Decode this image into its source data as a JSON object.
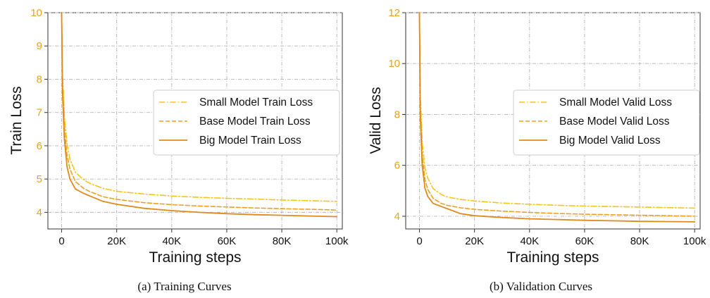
{
  "chart_data": [
    {
      "type": "line",
      "caption": "(a) Training Curves",
      "xlabel": "Training steps",
      "ylabel": "Train Loss",
      "xlim": [
        -5000,
        102000
      ],
      "ylim": [
        3.5,
        10
      ],
      "xticks": [
        0,
        20000,
        40000,
        60000,
        80000,
        100000
      ],
      "xtick_labels": [
        "0",
        "20K",
        "40K",
        "60K",
        "80K",
        "100k"
      ],
      "yticks": [
        4,
        5,
        6,
        7,
        8,
        9,
        10
      ],
      "ytick_labels": [
        "4",
        "5",
        "6",
        "7",
        "8",
        "9",
        "10"
      ],
      "grid": true,
      "legend_position": "center-right",
      "series": [
        {
          "name": "Small Model Train Loss",
          "style": "dashdot",
          "color": "#f5c518",
          "x": [
            0,
            300,
            1000,
            2000,
            3000,
            5000,
            8000,
            10000,
            15000,
            20000,
            30000,
            40000,
            50000,
            60000,
            70000,
            80000,
            90000,
            100000
          ],
          "y": [
            10,
            8.2,
            6.9,
            6.05,
            5.6,
            5.2,
            4.98,
            4.88,
            4.72,
            4.63,
            4.55,
            4.49,
            4.45,
            4.42,
            4.4,
            4.37,
            4.35,
            4.33
          ]
        },
        {
          "name": "Base Model Train Loss",
          "style": "dashed",
          "color": "#f0a020",
          "x": [
            0,
            300,
            1000,
            2000,
            3000,
            5000,
            8000,
            10000,
            15000,
            20000,
            30000,
            40000,
            50000,
            60000,
            70000,
            80000,
            90000,
            100000
          ],
          "y": [
            10,
            7.9,
            6.5,
            5.7,
            5.3,
            4.92,
            4.72,
            4.63,
            4.47,
            4.39,
            4.29,
            4.23,
            4.19,
            4.16,
            4.13,
            4.11,
            4.09,
            4.07
          ]
        },
        {
          "name": "Big Model Train Loss",
          "style": "solid",
          "color": "#e08a1e",
          "x": [
            0,
            300,
            1000,
            2000,
            3000,
            5000,
            8000,
            10000,
            15000,
            20000,
            30000,
            40000,
            50000,
            60000,
            70000,
            80000,
            90000,
            100000
          ],
          "y": [
            10,
            7.6,
            6.2,
            5.35,
            5.0,
            4.7,
            4.57,
            4.5,
            4.33,
            4.24,
            4.12,
            4.05,
            4.0,
            3.96,
            3.93,
            3.91,
            3.89,
            3.87
          ]
        }
      ]
    },
    {
      "type": "line",
      "caption": "(b) Validation Curves",
      "xlabel": "Training steps",
      "ylabel": "Valid  Loss",
      "xlim": [
        -5000,
        102000
      ],
      "ylim": [
        3.5,
        12
      ],
      "xticks": [
        0,
        20000,
        40000,
        60000,
        80000,
        100000
      ],
      "xtick_labels": [
        "0",
        "20K",
        "40K",
        "60K",
        "80K",
        "100k"
      ],
      "yticks": [
        4,
        6,
        8,
        10,
        12
      ],
      "ytick_labels": [
        "4",
        "6",
        "8",
        "10",
        "12"
      ],
      "grid": true,
      "legend_position": "center-right",
      "series": [
        {
          "name": "Small Model Valid Loss",
          "style": "dashdot",
          "color": "#f5c518",
          "x": [
            0,
            300,
            1000,
            2000,
            3000,
            5000,
            8000,
            10000,
            15000,
            20000,
            30000,
            40000,
            50000,
            60000,
            70000,
            80000,
            90000,
            100000
          ],
          "y": [
            12,
            8.8,
            6.9,
            5.9,
            5.5,
            5.08,
            4.85,
            4.76,
            4.66,
            4.6,
            4.52,
            4.47,
            4.43,
            4.4,
            4.38,
            4.36,
            4.34,
            4.32
          ]
        },
        {
          "name": "Base Model Valid Loss",
          "style": "dashed",
          "color": "#f0a020",
          "x": [
            0,
            300,
            1000,
            2000,
            3000,
            5000,
            8000,
            10000,
            15000,
            20000,
            30000,
            40000,
            50000,
            60000,
            70000,
            80000,
            90000,
            100000
          ],
          "y": [
            12,
            8.3,
            6.4,
            5.45,
            5.05,
            4.7,
            4.5,
            4.43,
            4.33,
            4.27,
            4.2,
            4.15,
            4.11,
            4.08,
            4.06,
            4.04,
            4.02,
            4.0
          ]
        },
        {
          "name": "Big Model Valid Loss",
          "style": "solid",
          "color": "#e08a1e",
          "x": [
            0,
            300,
            1000,
            2000,
            3000,
            5000,
            8000,
            10000,
            15000,
            20000,
            30000,
            40000,
            50000,
            60000,
            70000,
            80000,
            90000,
            100000
          ],
          "y": [
            12,
            7.9,
            6.0,
            5.1,
            4.78,
            4.5,
            4.38,
            4.3,
            4.1,
            4.02,
            3.95,
            3.9,
            3.87,
            3.84,
            3.82,
            3.8,
            3.79,
            3.78
          ]
        }
      ]
    }
  ]
}
